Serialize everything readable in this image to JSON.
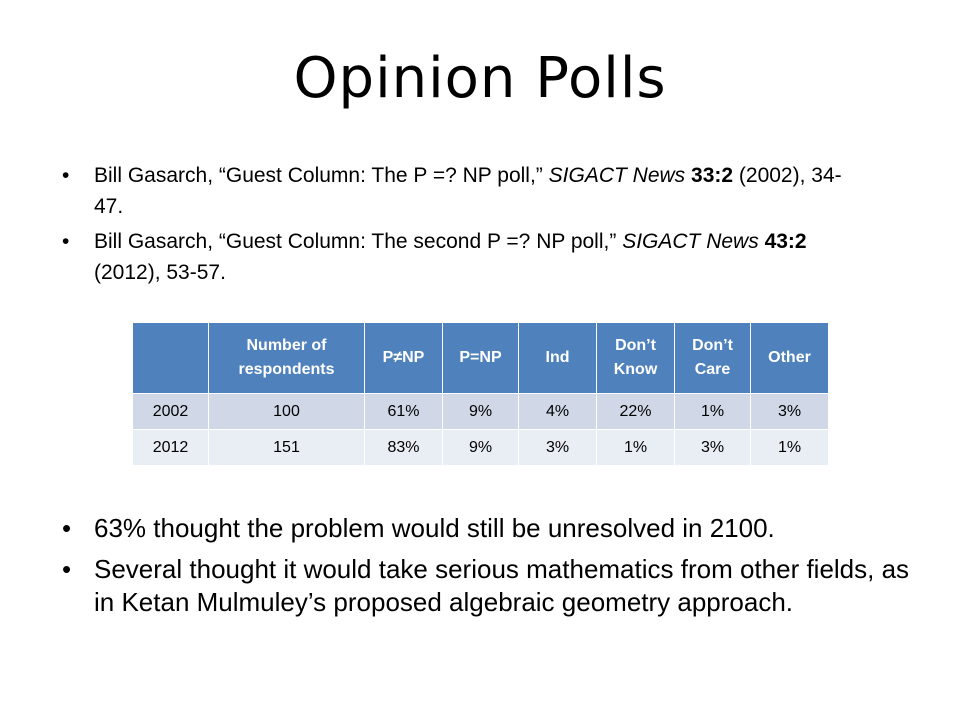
{
  "title": "Opinion Polls",
  "references": [
    {
      "author": "Bill Gasarch, ",
      "article": "“Guest Column: The P =? NP poll,”",
      "journal": "SIGACT News",
      "volume": "33:2",
      "rest": "(2002), 34-47."
    },
    {
      "author": "Bill Gasarch, ",
      "article": "“Guest Column: The second P =? NP poll,”",
      "journal": "SIGACT News",
      "volume": "43:2",
      "rest": "(2012), 53-57."
    }
  ],
  "table": {
    "headers": [
      "",
      "Number of respondents",
      "P≠NP",
      "P=NP",
      "Ind",
      "Don’t Know",
      "Don’t Care",
      "Other"
    ],
    "rows": [
      [
        "2002",
        "100",
        "61%",
        "9%",
        "4%",
        "22%",
        "1%",
        "3%"
      ],
      [
        "2012",
        "151",
        "83%",
        "9%",
        "3%",
        "1%",
        "3%",
        "1%"
      ]
    ]
  },
  "notes": [
    "63% thought the problem would still be unresolved in 2100.",
    "Several thought it would take serious mathematics from other fields, as in Ketan Mulmuley’s proposed algebraic geometry approach."
  ]
}
